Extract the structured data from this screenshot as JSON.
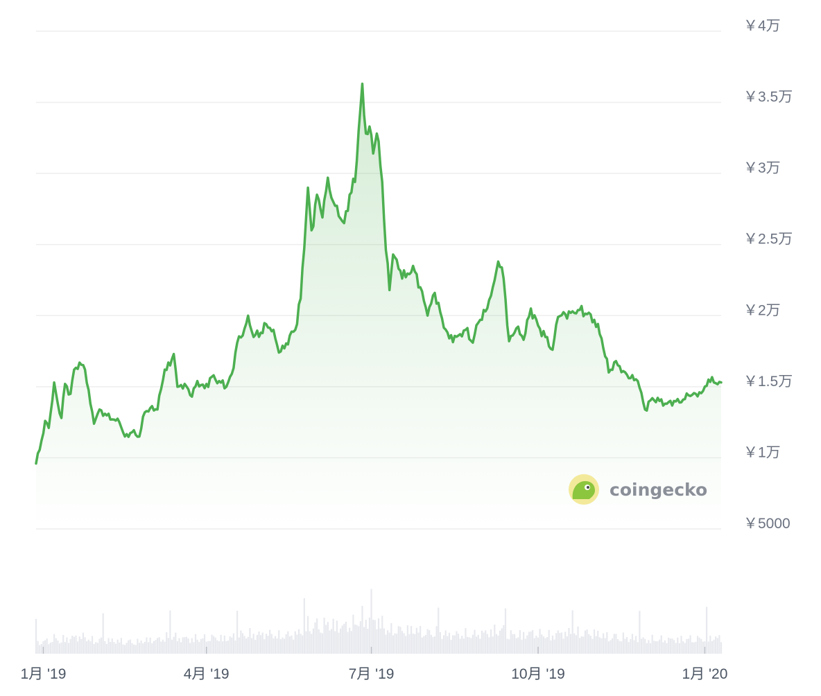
{
  "chart_data": {
    "type": "area",
    "ylim": [
      5000,
      40000
    ],
    "yticks": [
      {
        "value": 40000,
        "label": "￥4万"
      },
      {
        "value": 35000,
        "label": "￥3.5万"
      },
      {
        "value": 30000,
        "label": "￥3万"
      },
      {
        "value": 25000,
        "label": "￥2.5万"
      },
      {
        "value": 20000,
        "label": "￥2万"
      },
      {
        "value": 15000,
        "label": "￥1.5万"
      },
      {
        "value": 10000,
        "label": "￥1万"
      },
      {
        "value": 5000,
        "label": "￥5000"
      }
    ],
    "xlim": [
      "2018-12-28",
      "2020-01-10"
    ],
    "xticks": [
      {
        "date": "2019-01-01",
        "label": "1月 '19"
      },
      {
        "date": "2019-04-01",
        "label": "4月 '19"
      },
      {
        "date": "2019-07-01",
        "label": "7月 '19"
      },
      {
        "date": "2019-10-01",
        "label": "10月 '19"
      },
      {
        "date": "2020-01-01",
        "label": "1月 '20"
      }
    ],
    "grid": true,
    "watermark": "coingecko",
    "colors": {
      "line": "#4caf50",
      "fill": "#4caf50",
      "grid": "#eeeeee",
      "volume": "#e7e9ee"
    },
    "series": [
      {
        "points": [
          [
            "2018-12-28",
            9600
          ],
          [
            "2018-12-31",
            11200
          ],
          [
            "2019-01-02",
            12600
          ],
          [
            "2019-01-04",
            12100
          ],
          [
            "2019-01-07",
            15300
          ],
          [
            "2019-01-09",
            13800
          ],
          [
            "2019-01-11",
            12800
          ],
          [
            "2019-01-13",
            15200
          ],
          [
            "2019-01-16",
            14500
          ],
          [
            "2019-01-18",
            16200
          ],
          [
            "2019-01-21",
            16700
          ],
          [
            "2019-01-24",
            16200
          ],
          [
            "2019-01-27",
            13800
          ],
          [
            "2019-01-29",
            12400
          ],
          [
            "2019-02-01",
            13400
          ],
          [
            "2019-02-04",
            13100
          ],
          [
            "2019-02-08",
            12700
          ],
          [
            "2019-02-12",
            12500
          ],
          [
            "2019-02-15",
            11500
          ],
          [
            "2019-02-19",
            11800
          ],
          [
            "2019-02-23",
            11500
          ],
          [
            "2019-02-26",
            13200
          ],
          [
            "2019-03-01",
            13500
          ],
          [
            "2019-03-05",
            13400
          ],
          [
            "2019-03-09",
            16200
          ],
          [
            "2019-03-12",
            16500
          ],
          [
            "2019-03-14",
            17300
          ],
          [
            "2019-03-16",
            15000
          ],
          [
            "2019-03-20",
            15200
          ],
          [
            "2019-03-24",
            14300
          ],
          [
            "2019-03-27",
            15400
          ],
          [
            "2019-03-31",
            14900
          ],
          [
            "2019-04-04",
            15700
          ],
          [
            "2019-04-08",
            15400
          ],
          [
            "2019-04-12",
            15000
          ],
          [
            "2019-04-15",
            15900
          ],
          [
            "2019-04-18",
            18100
          ],
          [
            "2019-04-21",
            18600
          ],
          [
            "2019-04-24",
            20000
          ],
          [
            "2019-04-27",
            18500
          ],
          [
            "2019-05-01",
            18800
          ],
          [
            "2019-05-04",
            19400
          ],
          [
            "2019-05-08",
            19000
          ],
          [
            "2019-05-11",
            17400
          ],
          [
            "2019-05-14",
            17700
          ],
          [
            "2019-05-17",
            18600
          ],
          [
            "2019-05-20",
            19000
          ],
          [
            "2019-05-23",
            21200
          ],
          [
            "2019-05-27",
            29000
          ],
          [
            "2019-05-29",
            26000
          ],
          [
            "2019-06-01",
            28500
          ],
          [
            "2019-06-04",
            26900
          ],
          [
            "2019-06-07",
            29700
          ],
          [
            "2019-06-10",
            28000
          ],
          [
            "2019-06-13",
            27000
          ],
          [
            "2019-06-16",
            26500
          ],
          [
            "2019-06-19",
            28500
          ],
          [
            "2019-06-22",
            29400
          ],
          [
            "2019-06-24",
            33000
          ],
          [
            "2019-06-26",
            36300
          ],
          [
            "2019-06-28",
            32800
          ],
          [
            "2019-06-30",
            33300
          ],
          [
            "2019-07-02",
            31400
          ],
          [
            "2019-07-04",
            32800
          ],
          [
            "2019-07-07",
            29400
          ],
          [
            "2019-07-09",
            24600
          ],
          [
            "2019-07-11",
            21800
          ],
          [
            "2019-07-13",
            24300
          ],
          [
            "2019-07-16",
            23300
          ],
          [
            "2019-07-20",
            22700
          ],
          [
            "2019-07-24",
            23500
          ],
          [
            "2019-07-28",
            22000
          ],
          [
            "2019-08-01",
            20000
          ],
          [
            "2019-08-05",
            21600
          ],
          [
            "2019-08-09",
            19800
          ],
          [
            "2019-08-13",
            18400
          ],
          [
            "2019-08-18",
            18600
          ],
          [
            "2019-08-22",
            19000
          ],
          [
            "2019-08-26",
            18100
          ],
          [
            "2019-08-29",
            19500
          ],
          [
            "2019-09-02",
            20300
          ],
          [
            "2019-09-06",
            22000
          ],
          [
            "2019-09-09",
            23800
          ],
          [
            "2019-09-12",
            22600
          ],
          [
            "2019-09-15",
            18200
          ],
          [
            "2019-09-19",
            19100
          ],
          [
            "2019-09-23",
            18300
          ],
          [
            "2019-09-27",
            20500
          ],
          [
            "2019-10-01",
            19300
          ],
          [
            "2019-10-05",
            18500
          ],
          [
            "2019-10-09",
            17600
          ],
          [
            "2019-10-12",
            19900
          ],
          [
            "2019-10-16",
            20100
          ],
          [
            "2019-10-20",
            20300
          ],
          [
            "2019-10-24",
            20400
          ],
          [
            "2019-10-28",
            20100
          ],
          [
            "2019-11-01",
            19700
          ],
          [
            "2019-11-05",
            18400
          ],
          [
            "2019-11-09",
            16000
          ],
          [
            "2019-11-13",
            16800
          ],
          [
            "2019-11-17",
            16100
          ],
          [
            "2019-11-21",
            15600
          ],
          [
            "2019-11-25",
            15400
          ],
          [
            "2019-11-29",
            13400
          ],
          [
            "2019-12-03",
            14200
          ],
          [
            "2019-12-07",
            14000
          ],
          [
            "2019-12-11",
            13800
          ],
          [
            "2019-12-15",
            14000
          ],
          [
            "2019-12-19",
            13900
          ],
          [
            "2019-12-23",
            14400
          ],
          [
            "2019-12-27",
            14500
          ],
          [
            "2019-12-31",
            14700
          ],
          [
            "2020-01-03",
            15500
          ],
          [
            "2020-01-06",
            15300
          ],
          [
            "2020-01-10",
            15300
          ]
        ]
      }
    ]
  }
}
